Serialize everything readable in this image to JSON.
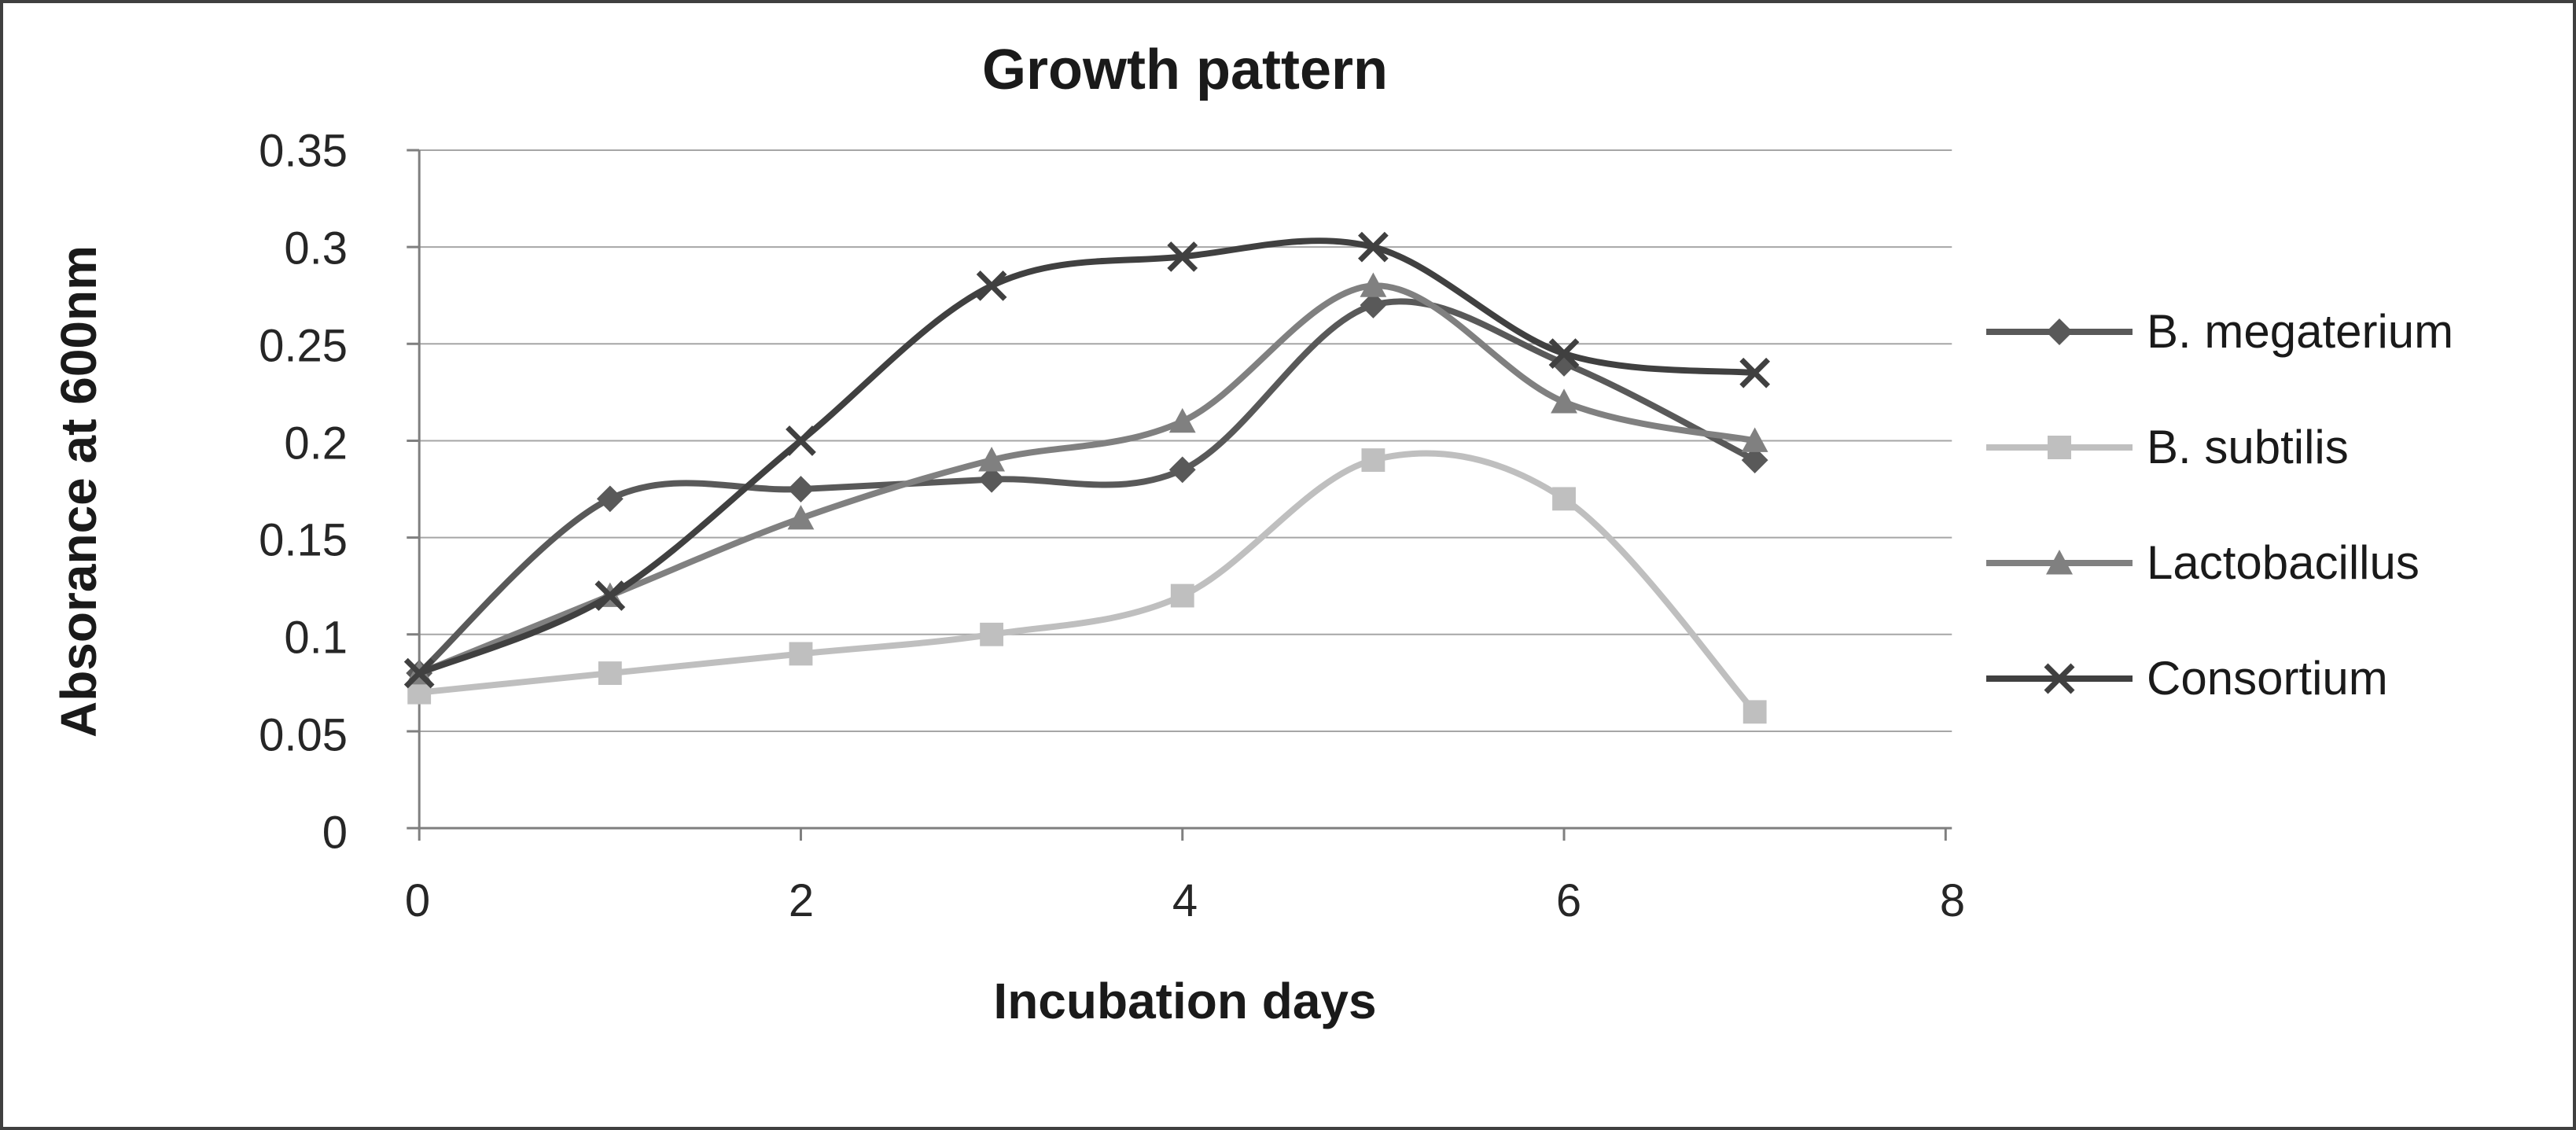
{
  "chart_data": {
    "type": "line",
    "title": "Growth pattern",
    "xlabel": "Incubation days",
    "ylabel": "Absorance at 600nm",
    "xlim": [
      0,
      8
    ],
    "ylim": [
      0,
      0.35
    ],
    "x": [
      0,
      1,
      2,
      3,
      4,
      5,
      6,
      7
    ],
    "x_ticks": {
      "values": [
        0,
        2,
        4,
        6,
        8
      ],
      "labels": [
        "0",
        "2",
        "4",
        "6",
        "8"
      ]
    },
    "y_ticks": {
      "values": [
        0.35,
        0.3,
        0.25,
        0.2,
        0.15,
        0.1,
        0.05,
        0
      ],
      "labels": [
        "0.35",
        "0.3",
        "0.25",
        "0.2",
        "0.15",
        "0.1",
        "0.05",
        "0"
      ]
    },
    "grid": "horizontal-major",
    "smooth_lines": true,
    "legend_position": "right",
    "gridline_color": "#a6a6a6",
    "axis_color": "#7f7f7f",
    "series": [
      {
        "name": "B. megaterium",
        "marker": "diamond",
        "color": "#595959",
        "values": [
          0.08,
          0.17,
          0.175,
          0.18,
          0.185,
          0.27,
          0.24,
          0.19
        ]
      },
      {
        "name": "B. subtilis",
        "marker": "square",
        "color": "#bfbfbf",
        "values": [
          0.07,
          0.08,
          0.09,
          0.1,
          0.12,
          0.19,
          0.17,
          0.06
        ]
      },
      {
        "name": "Lactobacillus",
        "marker": "triangle",
        "color": "#808080",
        "values": [
          0.08,
          0.12,
          0.16,
          0.19,
          0.21,
          0.28,
          0.22,
          0.2
        ]
      },
      {
        "name": "Consortium",
        "marker": "x",
        "color": "#404040",
        "values": [
          0.08,
          0.12,
          0.2,
          0.28,
          0.295,
          0.3,
          0.245,
          0.235
        ]
      }
    ]
  }
}
